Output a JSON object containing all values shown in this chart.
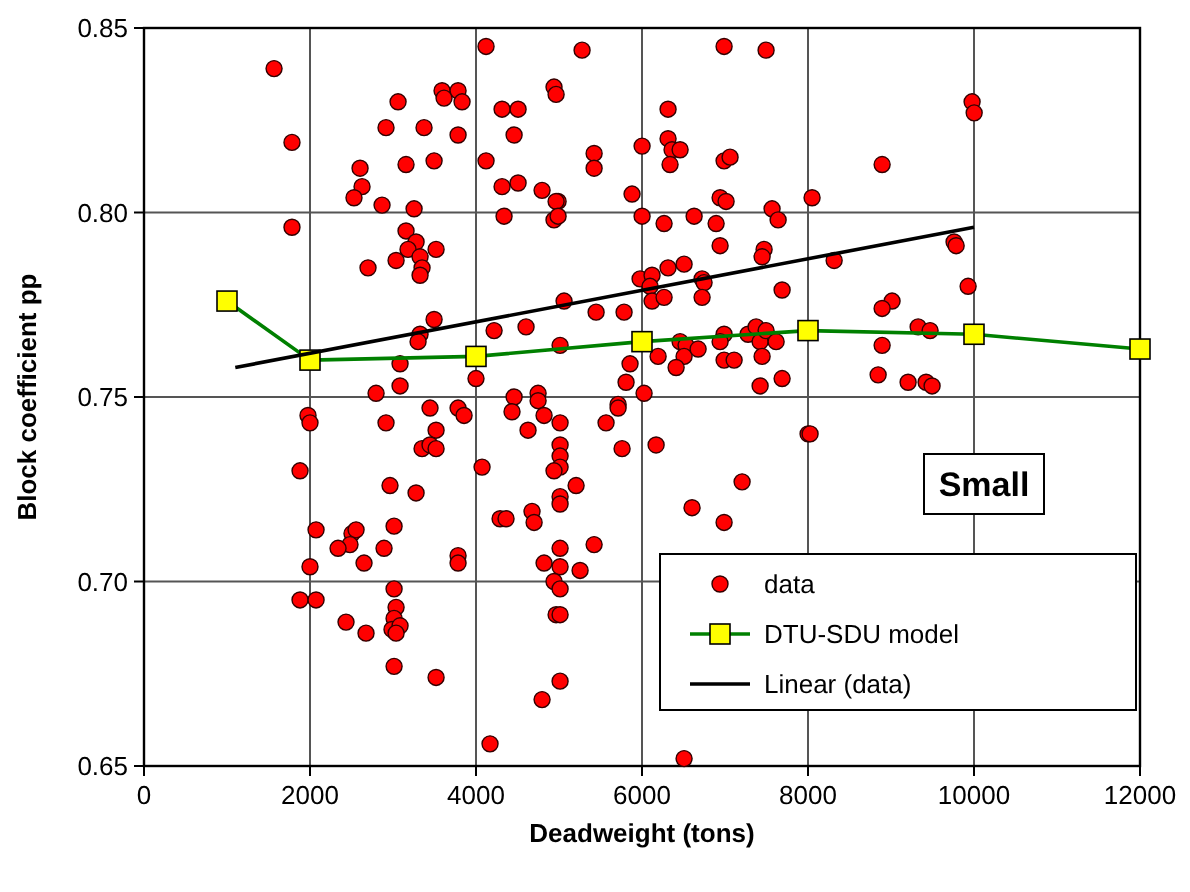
{
  "chart_data": {
    "type": "scatter",
    "xlabel": "Deadweight (tons)",
    "ylabel": "Block coefficient pp",
    "xlim": [
      0,
      12000
    ],
    "xticks": [
      0,
      2000,
      4000,
      6000,
      8000,
      10000,
      12000
    ],
    "ylim": [
      0.65,
      0.85
    ],
    "yticks": [
      {
        "value": 0.65,
        "label": "0.65"
      },
      {
        "value": 0.7,
        "label": "0.70"
      },
      {
        "value": 0.75,
        "label": "0.75"
      },
      {
        "value": 0.8,
        "label": "0.80"
      },
      {
        "value": 0.85,
        "label": "0.85"
      }
    ],
    "grid": true,
    "legend": "bottom right",
    "annotations": [
      "Small"
    ],
    "series": [
      {
        "name": "data",
        "marker": "circle",
        "color": "#ff0000",
        "x": [
          1567,
          1783,
          1783,
          4121,
          3591,
          3784,
          3615,
          3832,
          3061,
          2916,
          3374,
          3784,
          4121,
          3157,
          3495,
          2603,
          2627,
          2530,
          2868,
          3254,
          3157,
          3278,
          3181,
          3326,
          3519,
          3037,
          2699,
          3350,
          3326,
          3495,
          3326,
          3302,
          3085,
          3085,
          2796,
          4000,
          4218,
          4314,
          4314,
          5278,
          6989,
          7495,
          4940,
          4965,
          4507,
          6314,
          4459,
          5423,
          5423,
          6001,
          6314,
          6362,
          6459,
          6338,
          6989,
          7061,
          4507,
          4796,
          4989,
          4965,
          5880,
          6941,
          7013,
          8049,
          4338,
          4940,
          4989,
          6001,
          6266,
          6628,
          6893,
          7567,
          7640,
          6941,
          7471,
          7447,
          8315,
          5977,
          6121,
          6314,
          6507,
          6097,
          6724,
          6748,
          6121,
          6266,
          6724,
          7688,
          5061,
          5447,
          5784,
          4603,
          5013,
          5856,
          5808,
          6194,
          6459,
          6531,
          6507,
          6676,
          6411,
          6989,
          6941,
          7278,
          7375,
          7423,
          7495,
          7616,
          6989,
          7110,
          7447,
          7688,
          7423,
          4459,
          4748,
          4748,
          5712,
          6025,
          9977,
          10002,
          8893,
          9760,
          9785,
          9929,
          9013,
          8893,
          9327,
          9471,
          8893,
          8845,
          9206,
          9423,
          9495,
          1976,
          2000,
          2916,
          3446,
          3784,
          3856,
          3519,
          3350,
          3446,
          3519,
          1880,
          4073,
          2964,
          3278,
          2073,
          2506,
          2555,
          2482,
          2338,
          3013,
          2892,
          2651,
          2000,
          3784,
          3784,
          4290,
          3013,
          1880,
          2073,
          3037,
          3013,
          2988,
          3085,
          3037,
          2434,
          2675,
          3013,
          3519,
          4169,
          4434,
          4820,
          5013,
          4627,
          5712,
          5567,
          5760,
          6170,
          5013,
          5013,
          5013,
          4940,
          5206,
          5013,
          5013,
          4675,
          4700,
          4362,
          6603,
          6989,
          7206,
          8001,
          8025,
          5013,
          5423,
          4820,
          5013,
          5254,
          4940,
          5013,
          4965,
          5013,
          5013,
          4796,
          6507
        ],
        "values": [
          0.839,
          0.819,
          0.796,
          0.845,
          0.833,
          0.833,
          0.831,
          0.83,
          0.83,
          0.823,
          0.823,
          0.821,
          0.814,
          0.813,
          0.814,
          0.812,
          0.807,
          0.804,
          0.802,
          0.801,
          0.795,
          0.792,
          0.79,
          0.788,
          0.79,
          0.787,
          0.785,
          0.785,
          0.783,
          0.771,
          0.767,
          0.765,
          0.759,
          0.753,
          0.751,
          0.755,
          0.768,
          0.828,
          0.807,
          0.844,
          0.845,
          0.844,
          0.834,
          0.832,
          0.828,
          0.828,
          0.821,
          0.816,
          0.812,
          0.818,
          0.82,
          0.817,
          0.817,
          0.813,
          0.814,
          0.815,
          0.808,
          0.806,
          0.803,
          0.803,
          0.805,
          0.804,
          0.803,
          0.804,
          0.799,
          0.798,
          0.799,
          0.799,
          0.797,
          0.799,
          0.797,
          0.801,
          0.798,
          0.791,
          0.79,
          0.788,
          0.787,
          0.782,
          0.783,
          0.785,
          0.786,
          0.78,
          0.782,
          0.781,
          0.776,
          0.777,
          0.777,
          0.779,
          0.776,
          0.773,
          0.773,
          0.769,
          0.764,
          0.759,
          0.754,
          0.761,
          0.765,
          0.764,
          0.761,
          0.763,
          0.758,
          0.767,
          0.765,
          0.767,
          0.769,
          0.765,
          0.768,
          0.765,
          0.76,
          0.76,
          0.761,
          0.755,
          0.753,
          0.75,
          0.751,
          0.749,
          0.748,
          0.751,
          0.83,
          0.827,
          0.813,
          0.792,
          0.791,
          0.78,
          0.776,
          0.774,
          0.769,
          0.768,
          0.764,
          0.756,
          0.754,
          0.754,
          0.753,
          0.745,
          0.743,
          0.743,
          0.747,
          0.747,
          0.745,
          0.741,
          0.736,
          0.737,
          0.736,
          0.73,
          0.731,
          0.726,
          0.724,
          0.714,
          0.713,
          0.714,
          0.71,
          0.709,
          0.715,
          0.709,
          0.705,
          0.704,
          0.707,
          0.705,
          0.717,
          0.698,
          0.695,
          0.695,
          0.693,
          0.69,
          0.687,
          0.688,
          0.686,
          0.689,
          0.686,
          0.677,
          0.674,
          0.656,
          0.746,
          0.745,
          0.743,
          0.741,
          0.747,
          0.743,
          0.736,
          0.737,
          0.737,
          0.734,
          0.731,
          0.73,
          0.726,
          0.723,
          0.721,
          0.719,
          0.716,
          0.717,
          0.72,
          0.716,
          0.727,
          0.74,
          0.74,
          0.709,
          0.71,
          0.705,
          0.704,
          0.703,
          0.7,
          0.698,
          0.691,
          0.691,
          0.673,
          0.668,
          0.652
        ]
      },
      {
        "name": "DTU-SDU model",
        "type": "line",
        "marker": "square",
        "color": "#008000",
        "x": [
          1000,
          2000,
          4000,
          6000,
          8000,
          10000,
          12000
        ],
        "values": [
          0.776,
          0.76,
          0.761,
          0.765,
          0.768,
          0.767,
          0.763
        ]
      },
      {
        "name": "Linear (data)",
        "type": "line",
        "marker": "none",
        "color": "#000000",
        "x": [
          1100,
          10000
        ],
        "values": [
          0.758,
          0.796
        ]
      }
    ]
  }
}
